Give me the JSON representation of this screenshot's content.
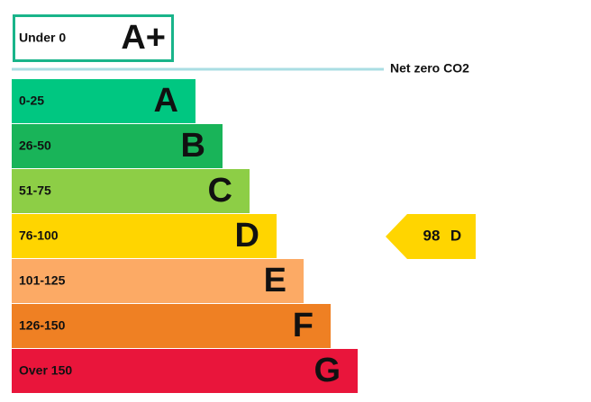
{
  "header": {
    "label": "Under 0",
    "rating": "A+",
    "color": "#19b48a"
  },
  "net_zero": {
    "label": "Net zero CO2",
    "color": "#a9dde3"
  },
  "bands": [
    {
      "range": "0-25",
      "letter": "A",
      "color": "#00c781"
    },
    {
      "range": "26-50",
      "letter": "B",
      "color": "#19b459"
    },
    {
      "range": "51-75",
      "letter": "C",
      "color": "#8dce46"
    },
    {
      "range": "76-100",
      "letter": "D",
      "color": "#ffd500"
    },
    {
      "range": "101-125",
      "letter": "E",
      "color": "#fcaa65"
    },
    {
      "range": "126-150",
      "letter": "F",
      "color": "#ef8023"
    },
    {
      "range": "Over 150",
      "letter": "G",
      "color": "#e9153b"
    }
  ],
  "current": {
    "score": 98,
    "letter": "D",
    "band": 3
  }
}
